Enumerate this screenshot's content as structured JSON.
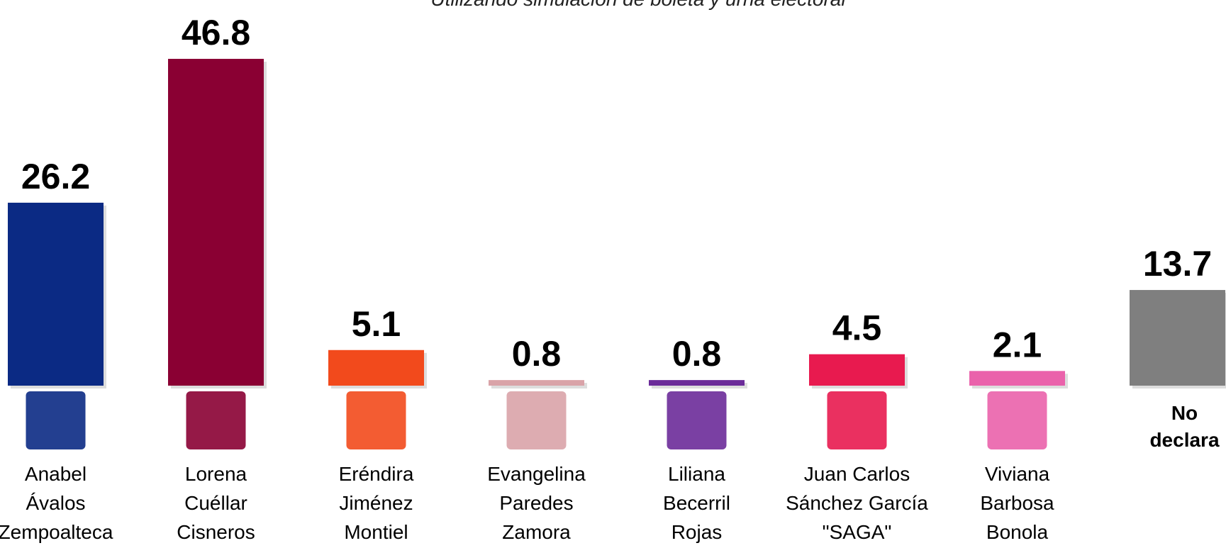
{
  "chart_data": {
    "type": "bar",
    "subtitle": "Utilizando simulación de boleta y urna electoral",
    "categories": [
      [
        "Anabel",
        "Ávalos",
        "Zempoalteca"
      ],
      [
        "Lorena",
        "Cuéllar",
        "Cisneros"
      ],
      [
        "Eréndira",
        "Jiménez",
        "Montiel"
      ],
      [
        "Evangelina",
        "Paredes",
        "Zamora"
      ],
      [
        "Liliana",
        "Becerril",
        "Rojas"
      ],
      [
        "Juan Carlos",
        "Sánchez García",
        "\"SAGA\""
      ],
      [
        "Viviana",
        "Barbosa",
        "Bonola"
      ],
      [
        "No",
        "declara"
      ]
    ],
    "values": [
      26.2,
      46.8,
      5.1,
      0.8,
      0.8,
      4.5,
      2.1,
      13.7
    ],
    "colors": [
      "#0b2a84",
      "#8a0033",
      "#f24a1c",
      "#d9a3a8",
      "#6b2b99",
      "#e81a4f",
      "#ea62ab",
      "#7f7f7f"
    ]
  }
}
